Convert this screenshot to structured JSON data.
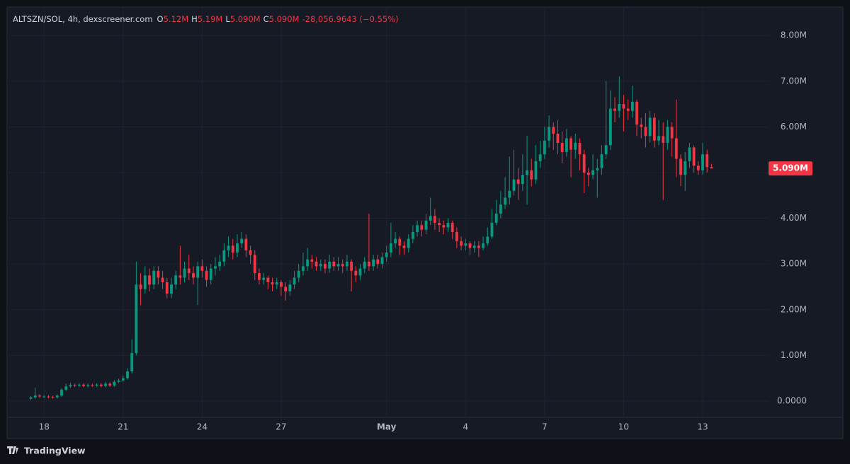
{
  "chart_data": {
    "type": "candlestick",
    "header": {
      "symbol": "ALTSZN/SOL, 4h, dexscreener.com",
      "fields": [
        {
          "key": "O",
          "text": "5.12M"
        },
        {
          "key": "H",
          "text": "5.19M"
        },
        {
          "key": "L",
          "text": "5.090M"
        },
        {
          "key": "C",
          "text": "5.090M"
        }
      ],
      "change": "-28,056.9643 (−0.55%)"
    },
    "last_price_label": "5.090M",
    "watermark": "TradingView",
    "up_color": "#089981",
    "down_color": "#f23645",
    "grid": true,
    "xlim": [
      -5.1,
      168
    ],
    "xticks": [
      {
        "value": 3,
        "label": "18"
      },
      {
        "value": 21,
        "label": "21"
      },
      {
        "value": 39,
        "label": "24"
      },
      {
        "value": 57,
        "label": "27"
      },
      {
        "value": 81,
        "label": "May"
      },
      {
        "value": 99,
        "label": "4"
      },
      {
        "value": 117,
        "label": "7"
      },
      {
        "value": 135,
        "label": "10"
      },
      {
        "value": 153,
        "label": "13"
      }
    ],
    "ylim": [
      -356000,
      8622000
    ],
    "yticks": [
      {
        "value": 0,
        "label": "0.0000"
      },
      {
        "value": 1000000,
        "label": "1.00M"
      },
      {
        "value": 2000000,
        "label": "2.00M"
      },
      {
        "value": 3000000,
        "label": "3.00M"
      },
      {
        "value": 4000000,
        "label": "4.00M"
      },
      {
        "value": 5000000,
        "label": "5.00M"
      },
      {
        "value": 6000000,
        "label": "6.00M"
      },
      {
        "value": 7000000,
        "label": "7.00M"
      },
      {
        "value": 8000000,
        "label": "8.00M"
      }
    ],
    "open": [
      50000,
      80000,
      120000,
      100000,
      100000,
      90000,
      80000,
      120000,
      250000,
      320000,
      350000,
      340000,
      360000,
      330000,
      350000,
      340000,
      360000,
      330000,
      380000,
      340000,
      420000,
      450000,
      500000,
      650000,
      1050000,
      2550000,
      2450000,
      2750000,
      2550000,
      2850000,
      2700000,
      2600000,
      2350000,
      2550000,
      2750000,
      2700000,
      2900000,
      2800000,
      2700000,
      2950000,
      2850000,
      2650000,
      2900000,
      2950000,
      3050000,
      3300000,
      3400000,
      3250000,
      3450000,
      3550000,
      3300000,
      3200000,
      2800000,
      2650000,
      2700000,
      2600000,
      2550000,
      2600000,
      2500000,
      2400000,
      2550000,
      2700000,
      2850000,
      2950000,
      3100000,
      3050000,
      2950000,
      3000000,
      2900000,
      3050000,
      2950000,
      3000000,
      2950000,
      3050000,
      2850000,
      2750000,
      2900000,
      3050000,
      2950000,
      3100000,
      3000000,
      3150000,
      3250000,
      3450000,
      3550000,
      3400000,
      3350000,
      3550000,
      3700000,
      3850000,
      3750000,
      3950000,
      4050000,
      3900000,
      3850000,
      3800000,
      3900000,
      3700000,
      3500000,
      3400000,
      3450000,
      3350000,
      3400000,
      3350000,
      3450000,
      3600000,
      3900000,
      4100000,
      4300000,
      4450000,
      4600000,
      4850000,
      4750000,
      4950000,
      5050000,
      4850000,
      5250000,
      5400000,
      5700000,
      6000000,
      5850000,
      5650000,
      5450000,
      5750000,
      5500000,
      5650000,
      5400000,
      5000000,
      4950000,
      5050000,
      5100000,
      5400000,
      5600000,
      6400000,
      6350000,
      6500000,
      6400000,
      6350000,
      6550000,
      6050000,
      6000000,
      5800000,
      6200000,
      5700000,
      5800000,
      5650000,
      6000000,
      5750000,
      5300000,
      4950000,
      5250000,
      5550000,
      5150000,
      5050000,
      5400000,
      5120000
    ],
    "high": [
      110000,
      290000,
      150000,
      130000,
      130000,
      120000,
      150000,
      280000,
      380000,
      400000,
      380000,
      390000,
      390000,
      380000,
      380000,
      390000,
      390000,
      420000,
      410000,
      460000,
      490000,
      560000,
      720000,
      1350000,
      3050000,
      2800000,
      2950000,
      2900000,
      2950000,
      2950000,
      2850000,
      2700000,
      2700000,
      2850000,
      3400000,
      3050000,
      3200000,
      2950000,
      3050000,
      3100000,
      2950000,
      3000000,
      3150000,
      3200000,
      3450000,
      3600000,
      3550000,
      3650000,
      3700000,
      3650000,
      3400000,
      3300000,
      2900000,
      2800000,
      2750000,
      2700000,
      2700000,
      2650000,
      2600000,
      2650000,
      2850000,
      3000000,
      3250000,
      3350000,
      3200000,
      3150000,
      3100000,
      3100000,
      3200000,
      3150000,
      3150000,
      3100000,
      3200000,
      3100000,
      2950000,
      3000000,
      3150000,
      4100000,
      3200000,
      3200000,
      3250000,
      3400000,
      3900000,
      3700000,
      3600000,
      3500000,
      3650000,
      3850000,
      3950000,
      3950000,
      4100000,
      4450000,
      4200000,
      4000000,
      3950000,
      4000000,
      3950000,
      3800000,
      3600000,
      3550000,
      3500000,
      3500000,
      3500000,
      3600000,
      3800000,
      4200000,
      4400000,
      4600000,
      4900000,
      5350000,
      5500000,
      5100000,
      5400000,
      5800000,
      5300000,
      5600000,
      5700000,
      6000000,
      6250000,
      6100000,
      6150000,
      5900000,
      5950000,
      5800000,
      5850000,
      5750000,
      5500000,
      5100000,
      5400000,
      5300000,
      5600000,
      7000000,
      6800000,
      6650000,
      7100000,
      6700000,
      6600000,
      6900000,
      6600000,
      6200000,
      6300000,
      6350000,
      6300000,
      6150000,
      6100000,
      6150000,
      6100000,
      6600000,
      5400000,
      5450000,
      5650000,
      5600000,
      5250000,
      5650000,
      5500000,
      5190000
    ],
    "low": [
      20000,
      50000,
      70000,
      70000,
      60000,
      50000,
      50000,
      90000,
      220000,
      290000,
      310000,
      310000,
      300000,
      300000,
      310000,
      310000,
      300000,
      300000,
      310000,
      310000,
      390000,
      420000,
      470000,
      600000,
      1000000,
      2100000,
      2350000,
      2400000,
      2450000,
      2550000,
      2450000,
      2250000,
      2250000,
      2450000,
      2550000,
      2600000,
      2650000,
      2550000,
      2100000,
      2700000,
      2500000,
      2550000,
      2750000,
      2850000,
      2950000,
      3150000,
      3100000,
      3150000,
      3350000,
      3150000,
      3000000,
      2650000,
      2550000,
      2550000,
      2450000,
      2400000,
      2450000,
      2300000,
      2200000,
      2300000,
      2450000,
      2600000,
      2750000,
      2850000,
      2900000,
      2850000,
      2850000,
      2800000,
      2800000,
      2850000,
      2850000,
      2800000,
      2850000,
      2400000,
      2600000,
      2650000,
      2800000,
      2850000,
      2850000,
      2900000,
      2900000,
      3050000,
      3150000,
      3350000,
      3200000,
      3200000,
      3250000,
      3450000,
      3600000,
      3600000,
      3650000,
      3850000,
      3750000,
      3700000,
      3650000,
      3700000,
      3550000,
      3350000,
      3300000,
      3300000,
      3200000,
      3250000,
      3150000,
      3300000,
      3400000,
      3550000,
      3850000,
      4000000,
      4200000,
      4300000,
      4500000,
      4400000,
      4600000,
      4300000,
      4700000,
      4750000,
      5100000,
      5300000,
      5550000,
      5500000,
      5400000,
      5200000,
      5350000,
      4900000,
      5300000,
      5050000,
      4550000,
      4700000,
      4850000,
      4450000,
      4950000,
      5300000,
      5500000,
      6100000,
      6200000,
      5900000,
      6150000,
      6200000,
      5800000,
      5750000,
      5550000,
      5650000,
      5550000,
      5600000,
      4400000,
      5500000,
      5350000,
      4900000,
      4700000,
      4600000,
      5100000,
      5000000,
      4950000,
      4950000,
      5000000,
      5090000
    ],
    "close": [
      80000,
      120000,
      100000,
      100000,
      90000,
      80000,
      120000,
      250000,
      320000,
      350000,
      340000,
      360000,
      330000,
      350000,
      340000,
      360000,
      330000,
      380000,
      340000,
      420000,
      450000,
      500000,
      650000,
      1050000,
      2550000,
      2450000,
      2750000,
      2550000,
      2850000,
      2700000,
      2600000,
      2350000,
      2550000,
      2750000,
      2700000,
      2900000,
      2800000,
      2700000,
      2950000,
      2850000,
      2650000,
      2900000,
      2950000,
      3050000,
      3300000,
      3400000,
      3250000,
      3450000,
      3550000,
      3300000,
      3200000,
      2800000,
      2650000,
      2700000,
      2600000,
      2550000,
      2600000,
      2500000,
      2400000,
      2550000,
      2700000,
      2850000,
      2950000,
      3100000,
      3050000,
      2950000,
      3000000,
      2900000,
      3050000,
      2950000,
      3000000,
      2950000,
      3050000,
      2850000,
      2750000,
      2900000,
      3050000,
      2950000,
      3100000,
      3000000,
      3150000,
      3250000,
      3450000,
      3550000,
      3400000,
      3350000,
      3550000,
      3700000,
      3850000,
      3750000,
      3950000,
      4050000,
      3900000,
      3850000,
      3800000,
      3900000,
      3700000,
      3500000,
      3400000,
      3450000,
      3350000,
      3400000,
      3350000,
      3450000,
      3600000,
      3900000,
      4100000,
      4300000,
      4450000,
      4600000,
      4850000,
      4750000,
      4950000,
      5050000,
      4850000,
      5250000,
      5400000,
      5700000,
      6000000,
      5850000,
      5650000,
      5450000,
      5750000,
      5500000,
      5650000,
      5400000,
      5000000,
      4950000,
      5050000,
      5100000,
      5400000,
      5600000,
      6400000,
      6350000,
      6500000,
      6400000,
      6350000,
      6550000,
      6050000,
      6000000,
      5800000,
      6200000,
      5700000,
      5800000,
      5650000,
      6000000,
      5750000,
      5300000,
      4950000,
      5250000,
      5550000,
      5150000,
      5050000,
      5400000,
      5120000,
      5090000
    ]
  }
}
